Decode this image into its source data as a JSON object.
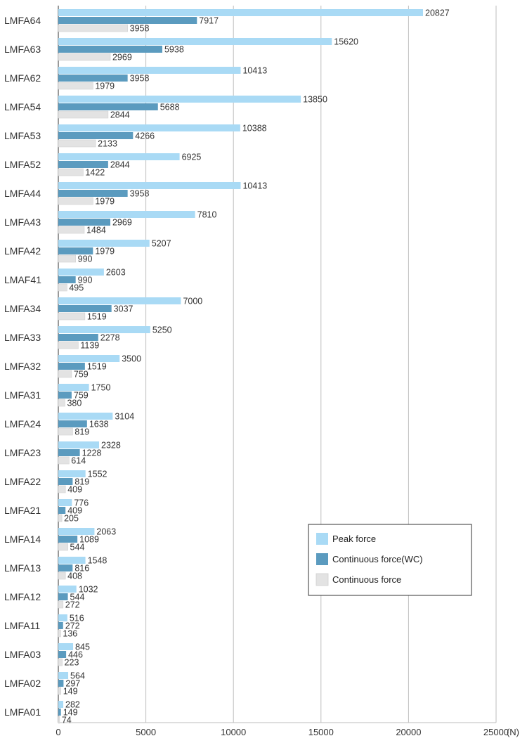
{
  "chart_data": {
    "type": "bar",
    "orientation": "horizontal",
    "categories": [
      "LMFA64",
      "LMFA63",
      "LMFA62",
      "LMFA54",
      "LMFA53",
      "LMFA52",
      "LMFA44",
      "LMFA43",
      "LMFA42",
      "LMAF41",
      "LMFA34",
      "LMFA33",
      "LMFA32",
      "LMFA31",
      "LMFA24",
      "LMFA23",
      "LMFA22",
      "LMFA21",
      "LMFA14",
      "LMFA13",
      "LMFA12",
      "LMFA11",
      "LMFA03",
      "LMFA02",
      "LMFA01"
    ],
    "series": [
      {
        "name": "Peak force",
        "color": "#a9daf5",
        "values": [
          20827,
          15620,
          10413,
          13850,
          10388,
          6925,
          10413,
          7810,
          5207,
          2603,
          7000,
          5250,
          3500,
          1750,
          3104,
          2328,
          1552,
          776,
          2063,
          1548,
          1032,
          516,
          845,
          564,
          282
        ]
      },
      {
        "name": "Continuous force(WC)",
        "color": "#5b9bbf",
        "values": [
          7917,
          5938,
          3958,
          5688,
          4266,
          2844,
          3958,
          2969,
          1979,
          990,
          3037,
          2278,
          1519,
          759,
          1638,
          1228,
          819,
          409,
          1089,
          816,
          544,
          272,
          446,
          297,
          149
        ]
      },
      {
        "name": "Continuous force",
        "color": "#e3e3e3",
        "values": [
          3958,
          2969,
          1979,
          2844,
          2133,
          1422,
          1979,
          1484,
          990,
          495,
          1519,
          1139,
          759,
          380,
          819,
          614,
          409,
          205,
          544,
          408,
          272,
          136,
          223,
          149,
          74
        ]
      }
    ],
    "xlim": [
      0,
      25000
    ],
    "xticks": [
      "0",
      "5000",
      "10000",
      "15000",
      "20000",
      "25000"
    ],
    "xunit": "(N)",
    "grid": "vertical",
    "legend_position": "lower-right"
  }
}
